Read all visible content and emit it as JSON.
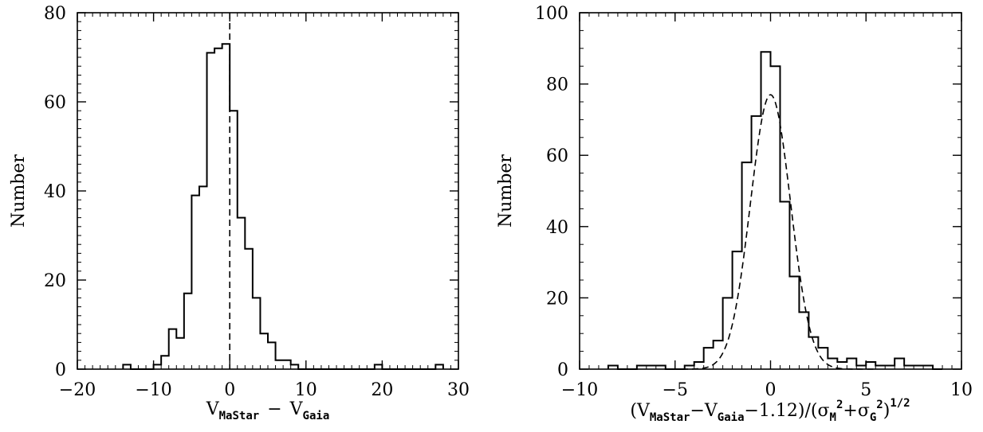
{
  "chart_data": [
    {
      "type": "histogram",
      "xlabel_parts": {
        "v": "V",
        "sub1": "MaStar",
        "minus": "−",
        "sub2": "Gaia"
      },
      "ylabel": "Number",
      "xlim": [
        -20,
        30
      ],
      "ylim": [
        0,
        80
      ],
      "x_ticks": [
        -20,
        -10,
        0,
        10,
        20,
        30
      ],
      "x_tick_labels": [
        "−20",
        "−10",
        "0",
        "10",
        "20",
        "30"
      ],
      "y_ticks": [
        0,
        20,
        40,
        60,
        80
      ],
      "y_tick_labels": [
        "0",
        "20",
        "40",
        "60",
        "80"
      ],
      "bin_edges": [
        -14,
        -13,
        -12,
        -11,
        -10,
        -9,
        -8,
        -7,
        -6,
        -5,
        -4,
        -3,
        -2,
        -1,
        0,
        1,
        2,
        3,
        4,
        5,
        6,
        7,
        8,
        9,
        10,
        11,
        12,
        13,
        14,
        15,
        16,
        17,
        18,
        19,
        20,
        21,
        22,
        23,
        24,
        25,
        26,
        27,
        28
      ],
      "counts": [
        1,
        0,
        0,
        0,
        1,
        3,
        9,
        7,
        17,
        39,
        41,
        71,
        72,
        73,
        58,
        34,
        27,
        16,
        8,
        6,
        2,
        2,
        1,
        0,
        0,
        0,
        0,
        0,
        0,
        0,
        0,
        0,
        0,
        1,
        0,
        0,
        0,
        0,
        0,
        0,
        0,
        1
      ],
      "reference_line": {
        "x": 0,
        "style": "dashed"
      }
    },
    {
      "type": "histogram",
      "xlabel_parts": {
        "open": "(V",
        "sub1": "MaStar",
        "mid1": "−V",
        "sub2": "Gaia",
        "mid2": "−1.12)/(σ",
        "sub3": "M",
        "sup1": "2",
        "mid3": "+σ",
        "sub4": "G",
        "sup2": "2",
        "close": ")",
        "sup3": "1/2"
      },
      "ylabel": "Number",
      "xlim": [
        -10,
        10
      ],
      "ylim": [
        0,
        100
      ],
      "x_ticks": [
        -10,
        -5,
        0,
        5,
        10
      ],
      "x_tick_labels": [
        "−10",
        "−5",
        "0",
        "5",
        "10"
      ],
      "y_ticks": [
        0,
        20,
        40,
        60,
        80,
        100
      ],
      "y_tick_labels": [
        "0",
        "20",
        "40",
        "60",
        "80",
        "100"
      ],
      "bin_edges": [
        -8.5,
        -8.0,
        -7.5,
        -7.0,
        -6.5,
        -6.0,
        -5.5,
        -5.0,
        -4.5,
        -4.0,
        -3.5,
        -3.0,
        -2.5,
        -2.0,
        -1.5,
        -1.0,
        -0.5,
        0.0,
        0.5,
        1.0,
        1.5,
        2.0,
        2.5,
        3.0,
        3.5,
        4.0,
        4.5,
        5.0,
        5.5,
        6.0,
        6.5,
        7.0,
        7.5,
        8.0,
        8.5,
        9.0
      ],
      "counts": [
        1,
        0,
        0,
        1,
        1,
        1,
        0,
        0,
        1,
        2,
        6,
        8,
        20,
        33,
        58,
        71,
        89,
        85,
        47,
        26,
        16,
        9,
        6,
        3,
        2,
        3,
        1,
        2,
        1,
        1,
        3,
        1,
        1,
        1,
        0
      ],
      "gaussian_fit": {
        "amplitude": 77,
        "mean": 0,
        "sigma": 1.05,
        "style": "dashed"
      }
    }
  ]
}
